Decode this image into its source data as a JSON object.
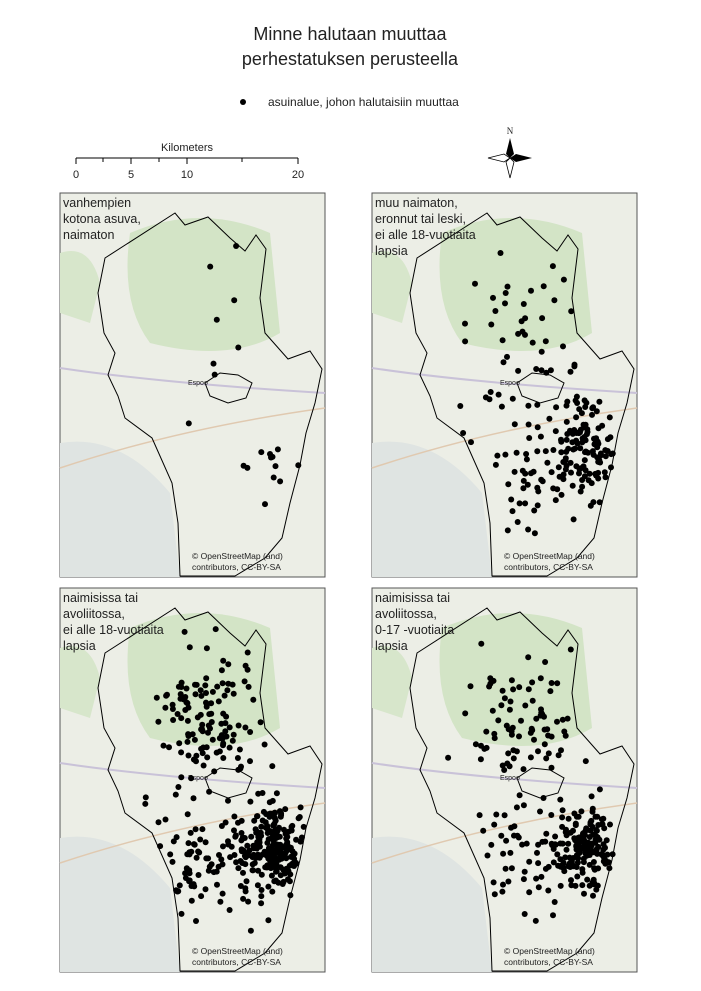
{
  "title": [
    "Minne halutaan muuttaa",
    "perhestatuksen perusteella"
  ],
  "legend": {
    "label": "asuinalue, johon halutaisiin muuttaa"
  },
  "scale_bar": {
    "title": "Kilometers",
    "ticks": [
      "0",
      "5",
      "10",
      "20"
    ]
  },
  "north_arrow": {
    "label": "N"
  },
  "attribution": [
    "© OpenStreetMap (and)",
    "contributors, CC-BY-SA"
  ],
  "place_label": "Espoo",
  "panels": [
    {
      "label": [
        "vanhempien",
        "kotona asuva,",
        "naimaton"
      ]
    },
    {
      "label": [
        "muu naimaton,",
        "eronnut tai leski,",
        "ei alle 18-vuotiaita",
        "lapsia"
      ]
    },
    {
      "label": [
        "naimisissa tai",
        "avoliitossa,",
        "ei alle 18-vuotiaita",
        "lapsia"
      ]
    },
    {
      "label": [
        "naimisissa tai",
        "avoliitossa,",
        "0-17 -vuotiaita",
        "lapsia"
      ]
    }
  ]
}
